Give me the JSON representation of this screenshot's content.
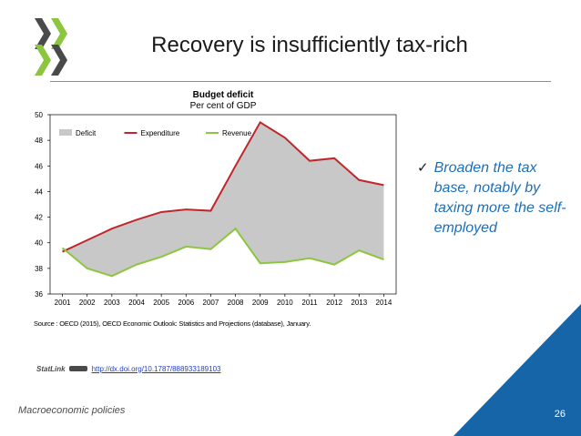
{
  "slide": {
    "title": "Recovery is insufficiently tax-rich",
    "bullet": "Broaden the tax base, notably by taxing more the self-employed",
    "footer": "Macroeconomic policies",
    "page_number": "26",
    "source": "Source : OECD (2015), OECD Economic Outlook: Statistics and Projections (database), January.",
    "statlink_label": "StatLink",
    "statlink_url": "http://dx.doi.org/10.1787/888933189103"
  },
  "colors": {
    "accent_blue": "#1d6fb8",
    "corner_blue": "#1565a8",
    "logo_green": "#7cb342"
  },
  "chart_data": {
    "type": "area",
    "title": "Budget deficit",
    "subtitle": "Per cent of GDP",
    "x": [
      2001,
      2002,
      2003,
      2004,
      2005,
      2006,
      2007,
      2008,
      2009,
      2010,
      2011,
      2012,
      2013,
      2014
    ],
    "ylim": [
      36,
      50
    ],
    "yticks": [
      36,
      38,
      40,
      42,
      44,
      46,
      48,
      50
    ],
    "grid": false,
    "legend_position": "top-left",
    "series": [
      {
        "name": "Deficit",
        "type": "area",
        "color": "#c8c8c8",
        "description_of_values": "shaded area between Revenue and Expenditure"
      },
      {
        "name": "Expenditure",
        "type": "line",
        "color": "#c0272d",
        "values": [
          39.3,
          40.2,
          41.1,
          41.8,
          42.4,
          42.6,
          42.5,
          46.0,
          49.4,
          48.2,
          46.4,
          46.6,
          44.9,
          44.5
        ]
      },
      {
        "name": "Revenue",
        "type": "line",
        "color": "#8cc63f",
        "values": [
          39.6,
          38.0,
          37.4,
          38.3,
          38.9,
          39.7,
          39.5,
          41.1,
          38.4,
          38.5,
          38.8,
          38.3,
          39.4,
          38.7
        ]
      }
    ]
  }
}
